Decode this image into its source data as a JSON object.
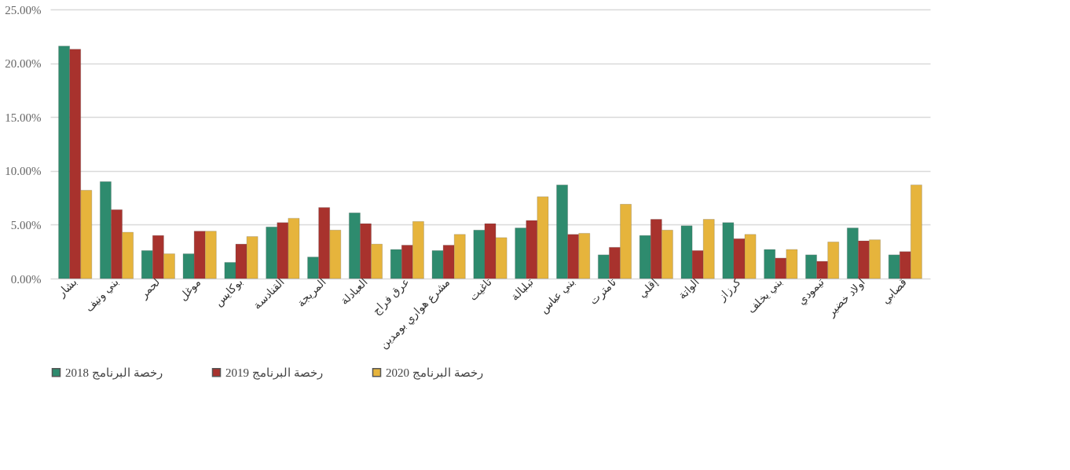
{
  "chart_data": {
    "type": "bar",
    "categories": [
      "بشار",
      "بني ونيف",
      "لحمر",
      "موغل",
      "بوكايس",
      "القنادسة",
      "المريجة",
      "العبادلة",
      "عرق فراج",
      "مشرع هواري بومدين",
      "تاغيت",
      "تبلبالة",
      "بني عباس",
      "تامترت",
      "إقلي",
      "الواتة",
      "كرزاز",
      "بني يخلف",
      "تيمودي",
      "أولاد خضير",
      "قصابي"
    ],
    "series": [
      {
        "name": "رخصة البرنامج 2018",
        "color": "#2e8b6e",
        "values": [
          21.6,
          9.0,
          2.6,
          2.3,
          1.5,
          4.8,
          2.0,
          6.1,
          2.7,
          2.6,
          4.5,
          4.7,
          8.7,
          2.2,
          4.0,
          4.9,
          5.2,
          2.7,
          2.2,
          4.7,
          2.2
        ]
      },
      {
        "name": "رخصة البرنامج 2019",
        "color": "#a8322d",
        "values": [
          21.3,
          6.4,
          4.0,
          4.4,
          3.2,
          5.2,
          6.6,
          5.1,
          3.1,
          3.1,
          5.1,
          5.4,
          4.1,
          2.9,
          5.5,
          2.6,
          3.7,
          1.9,
          1.6,
          3.5,
          2.5
        ]
      },
      {
        "name": "رخصة البرنامج 2020",
        "color": "#e6b43c",
        "values": [
          8.2,
          4.3,
          2.3,
          4.4,
          3.9,
          5.6,
          4.5,
          3.2,
          5.3,
          4.1,
          3.8,
          7.6,
          4.2,
          6.9,
          4.5,
          5.5,
          4.1,
          2.7,
          3.4,
          3.6,
          8.7
        ]
      }
    ],
    "ylim": [
      0,
      25
    ],
    "yticks": [
      {
        "value": 0,
        "label": "0.00%"
      },
      {
        "value": 5,
        "label": "5.00%"
      },
      {
        "value": 10,
        "label": "10.00%"
      },
      {
        "value": 15,
        "label": "15.00%"
      },
      {
        "value": 20,
        "label": "20.00%"
      },
      {
        "value": 25,
        "label": "25.00%"
      }
    ],
    "grid": true,
    "legend": "bottom"
  }
}
